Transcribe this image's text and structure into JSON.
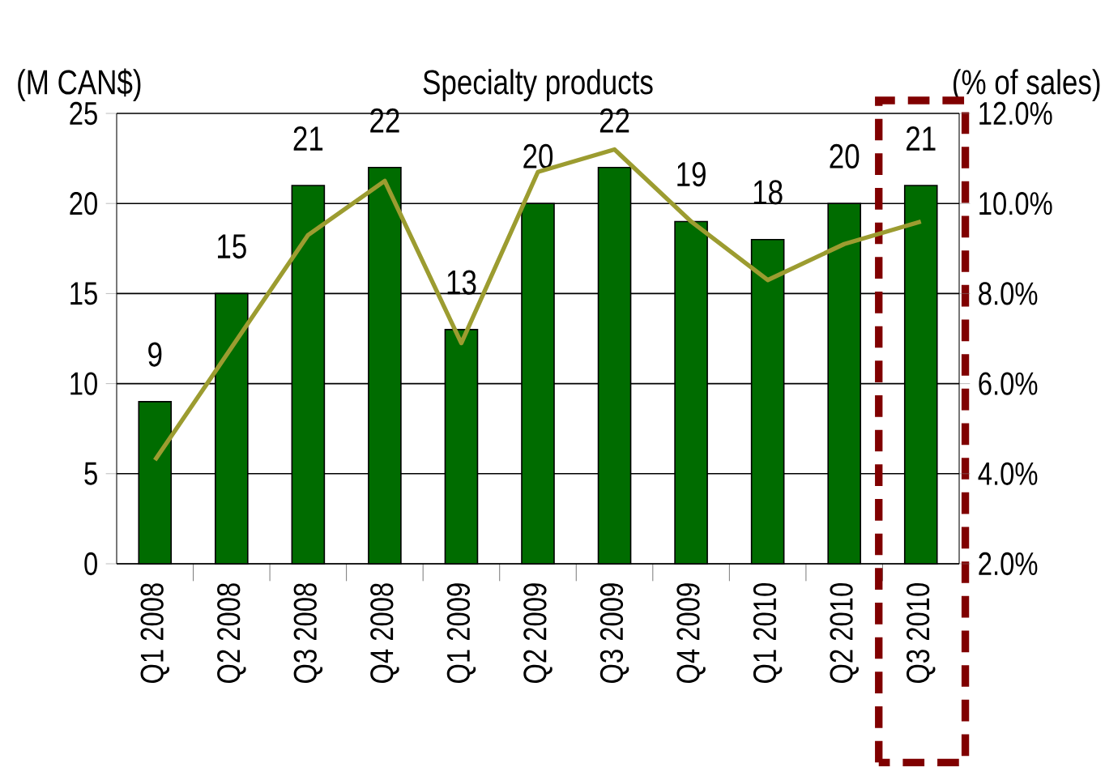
{
  "chart_data": {
    "type": "bar",
    "title": "Specialty products",
    "ylabel": "(M CAN$)",
    "y2label": "(% of sales)",
    "categories": [
      "Q1 2008",
      "Q2 2008",
      "Q3 2008",
      "Q4 2008",
      "Q1 2009",
      "Q2 2009",
      "Q3 2009",
      "Q4 2009",
      "Q1 2010",
      "Q2 2010",
      "Q3 2010"
    ],
    "series": [
      {
        "color": "#006c00",
        "values": [
          9,
          15,
          21,
          22,
          13,
          20,
          22,
          19,
          18,
          20,
          21
        ],
        "value_labels": [
          "9",
          "15",
          "21",
          "22",
          "13",
          "20",
          "22",
          "19",
          "18",
          "20",
          "21"
        ]
      },
      {
        "type": "line",
        "axis": "y2",
        "color": "#9c9c30",
        "values": [
          4.3,
          6.8,
          9.3,
          10.5,
          6.9,
          10.7,
          11.2,
          9.6,
          8.3,
          9.1,
          9.6
        ]
      }
    ],
    "ylim": [
      0,
      25
    ],
    "yticks": [
      0,
      5,
      10,
      15,
      20,
      25
    ],
    "y2lim": [
      2,
      12
    ],
    "y2ticks": [
      {
        "value": 2,
        "label": "2.0%"
      },
      {
        "value": 4,
        "label": "4.0%"
      },
      {
        "value": 6,
        "label": "6.0%"
      },
      {
        "value": 8,
        "label": "8.0%"
      },
      {
        "value": 10,
        "label": "10.0%"
      },
      {
        "value": 12,
        "label": "12.0%"
      }
    ],
    "grid": "y",
    "marker": "none",
    "line_style": "solid"
  }
}
